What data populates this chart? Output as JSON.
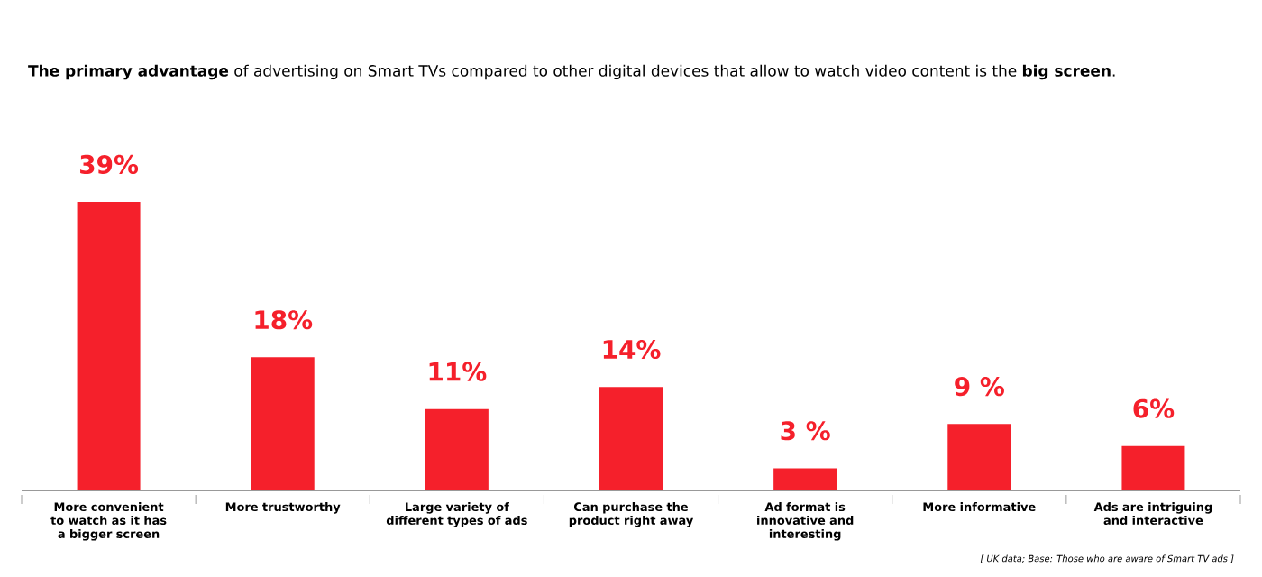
{
  "chart_data": {
    "type": "bar",
    "title": "**The primary advantage** of advertising on Smart TVs compared to other digital devices that allow to watch video content is the **big screen**.",
    "categories": [
      "More convenient to watch as it has a bigger screen",
      "More trustworthy",
      "Large variety of different types of ads",
      "Can purchase the product right away",
      "Ad format is innovative and interesting",
      "More informative",
      "Ads are intriguing and interactive"
    ],
    "values": [
      39,
      18,
      11,
      14,
      3,
      9,
      6
    ],
    "value_labels": [
      "39%",
      "18%",
      "11%",
      "14%",
      "3 %",
      "9 %",
      "6%"
    ],
    "color": "#f5202b",
    "annotations": [
      "[ UK data; Base: Those who are aware of Smart TV ads ]"
    ]
  }
}
